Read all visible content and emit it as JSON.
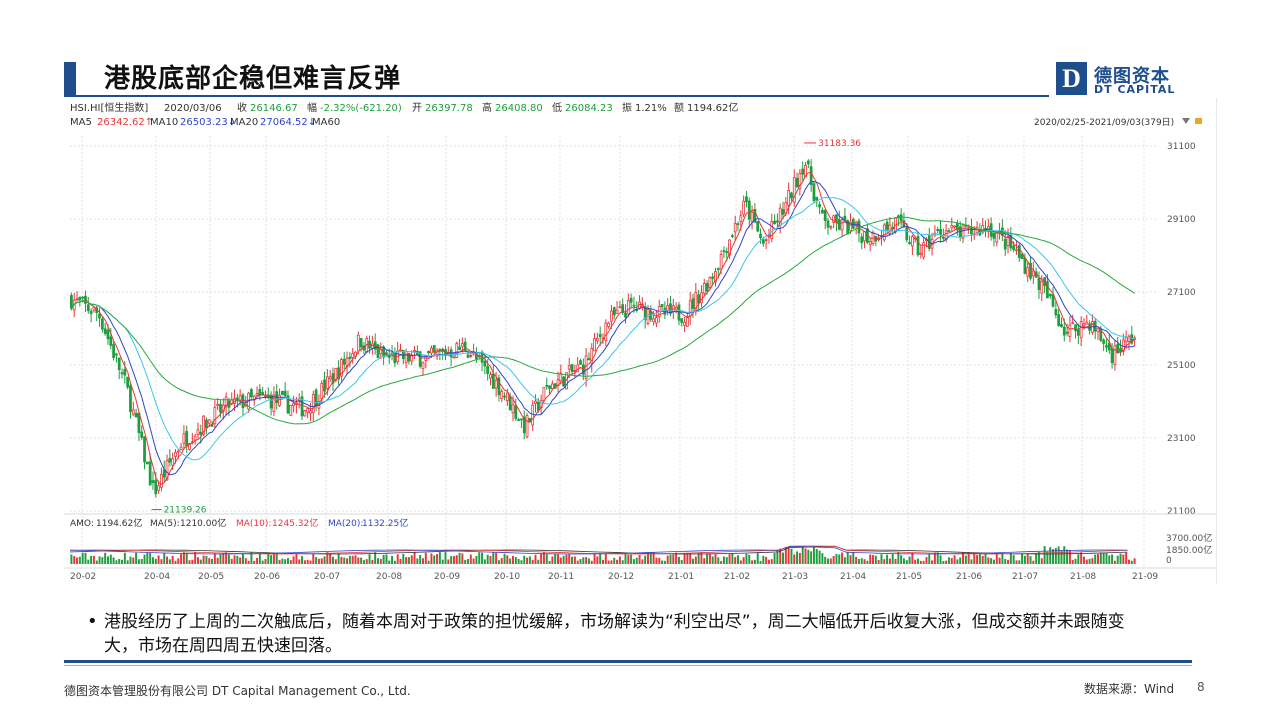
{
  "slide": {
    "title": "港股底部企稳但难言反弹",
    "bullet": "港股经历了上周的二次触底后，随着本周对于政策的担忧缓解，市场解读为“利空出尽”，周二大幅低开后收复大涨，但成交额并未跟随变大，市场在周四周五快速回落。",
    "footer_left": "德图资本管理股份有限公司  DT Capital  Management  Co., Ltd.",
    "footer_right": "数据来源：Wind",
    "page_number": "8"
  },
  "logo": {
    "box_letter": "D",
    "cn": "德图资本",
    "en": "DT CAPITAL"
  },
  "chart_data": {
    "type": "candlestick",
    "header": {
      "symbol": "HSI.HI[恒生指数]",
      "date": "2020/03/06",
      "close_label": "收",
      "close": "26146.67",
      "change_label": "幅",
      "change": "-2.32%(-621.20)",
      "open_label": "开",
      "open": "26397.78",
      "high_label": "高",
      "high": "26408.80",
      "low_label": "低",
      "low": "26084.23",
      "amp_label": "振",
      "amp": "1.21%",
      "amount_label": "额",
      "amount": "1194.62亿"
    },
    "ma_legend": {
      "ma5": "MA5",
      "ma5_val": "26342.62↑",
      "ma10": "MA10",
      "ma10_val": "26503.23↓",
      "ma20": "MA20",
      "ma20_val": "27064.52↓",
      "ma60": "MA60"
    },
    "range_label": "2020/02/25-2021/09/03(379日)",
    "y_ticks": [
      "31100",
      "29100",
      "27100",
      "25100",
      "23100",
      "21100"
    ],
    "ylim": [
      21100,
      31500
    ],
    "annotations": {
      "high": "31183.36",
      "low": "21139.26"
    },
    "x_ticks": [
      "20-02",
      "20-04",
      "20-05",
      "20-06",
      "20-07",
      "20-08",
      "20-09",
      "20-10",
      "20-11",
      "20-12",
      "21-01",
      "21-02",
      "21-03",
      "21-04",
      "21-05",
      "21-06",
      "21-07",
      "21-08",
      "21-09"
    ],
    "trend": [
      {
        "t": 0,
        "v": 26900
      },
      {
        "t": 0.03,
        "v": 26500
      },
      {
        "t": 0.06,
        "v": 24500
      },
      {
        "t": 0.09,
        "v": 21600
      },
      {
        "t": 0.12,
        "v": 23000
      },
      {
        "t": 0.17,
        "v": 24000
      },
      {
        "t": 0.21,
        "v": 24200
      },
      {
        "t": 0.255,
        "v": 23900
      },
      {
        "t": 0.29,
        "v": 24900
      },
      {
        "t": 0.315,
        "v": 25800
      },
      {
        "t": 0.34,
        "v": 25300
      },
      {
        "t": 0.39,
        "v": 25300
      },
      {
        "t": 0.43,
        "v": 25600
      },
      {
        "t": 0.47,
        "v": 24400
      },
      {
        "t": 0.495,
        "v": 23400
      },
      {
        "t": 0.52,
        "v": 24500
      },
      {
        "t": 0.56,
        "v": 25100
      },
      {
        "t": 0.585,
        "v": 26300
      },
      {
        "t": 0.61,
        "v": 26700
      },
      {
        "t": 0.64,
        "v": 26500
      },
      {
        "t": 0.67,
        "v": 26500
      },
      {
        "t": 0.7,
        "v": 27600
      },
      {
        "t": 0.735,
        "v": 29500
      },
      {
        "t": 0.755,
        "v": 28400
      },
      {
        "t": 0.78,
        "v": 29500
      },
      {
        "t": 0.8,
        "v": 30700
      },
      {
        "t": 0.82,
        "v": 29000
      },
      {
        "t": 0.845,
        "v": 28900
      },
      {
        "t": 0.87,
        "v": 28600
      },
      {
        "t": 0.9,
        "v": 29000
      },
      {
        "t": 0.925,
        "v": 28200
      },
      {
        "t": 0.95,
        "v": 28800
      },
      {
        "t": 0.975,
        "v": 28700
      },
      {
        "t": 1.0,
        "v": 28900
      },
      {
        "t": 1.03,
        "v": 28200
      },
      {
        "t": 1.06,
        "v": 27200
      },
      {
        "t": 1.085,
        "v": 26000
      },
      {
        "t": 1.11,
        "v": 26300
      },
      {
        "t": 1.135,
        "v": 25400
      },
      {
        "t": 1.16,
        "v": 25900
      }
    ],
    "ma_series": [
      {
        "name": "MA5",
        "color": "#e8363b"
      },
      {
        "name": "MA10",
        "color": "#2e46c9"
      },
      {
        "name": "MA20",
        "color": "#3cc7e8"
      },
      {
        "name": "MA60",
        "color": "#29a83e"
      }
    ],
    "volume": {
      "amo_label": "AMO:",
      "amo_val": "1194.62亿",
      "ma5_label": "MA(5):",
      "ma5_val": "1210.00亿",
      "ma10_label": "MA(10):",
      "ma10_val": "1245.32亿",
      "ma20_label": "MA(20):",
      "ma20_val": "1132.25亿",
      "y_ticks": [
        "3700.00亿",
        "1850.00亿",
        "0"
      ]
    },
    "colors": {
      "up": "#e8363b",
      "down": "#1e9e3e",
      "grid": "#e3e3e3"
    }
  }
}
